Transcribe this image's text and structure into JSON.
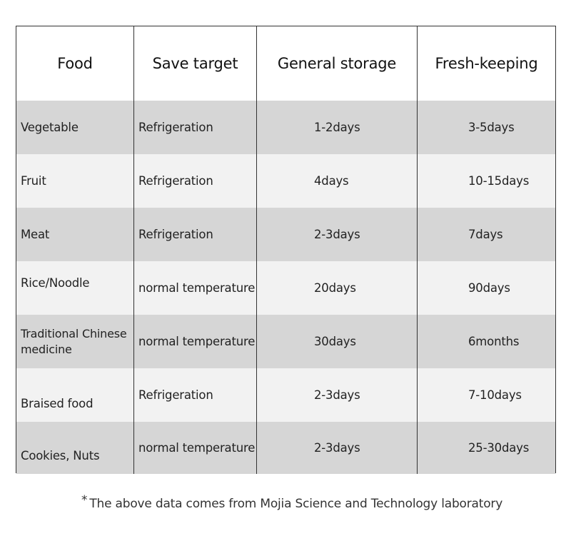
{
  "table": {
    "headers": [
      "Food",
      "Save target",
      "General storage",
      "Fresh-keeping"
    ],
    "rows": [
      [
        "Vegetable",
        "Refrigeration",
        "1-2days",
        "3-5days"
      ],
      [
        "Fruit",
        "Refrigeration",
        "4days",
        "10-15days"
      ],
      [
        "Meat",
        "Refrigeration",
        "2-3days",
        "7days"
      ],
      [
        "Rice/Noodle",
        "normal temperature",
        "20days",
        "90days"
      ],
      [
        "Traditional Chinese medicine",
        "normal temperature",
        "30days",
        "6months"
      ],
      [
        "Braised food",
        "Refrigeration",
        "2-3days",
        "7-10days"
      ],
      [
        "Cookies, Nuts",
        "normal temperature",
        "2-3days",
        "25-30days"
      ]
    ]
  },
  "footnote": {
    "marker": "*",
    "text": "The above data comes from Mojia Science and Technology laboratory"
  },
  "colors": {
    "row_dark": "#d6d6d6",
    "row_light": "#f2f2f2",
    "border": "#333333"
  }
}
